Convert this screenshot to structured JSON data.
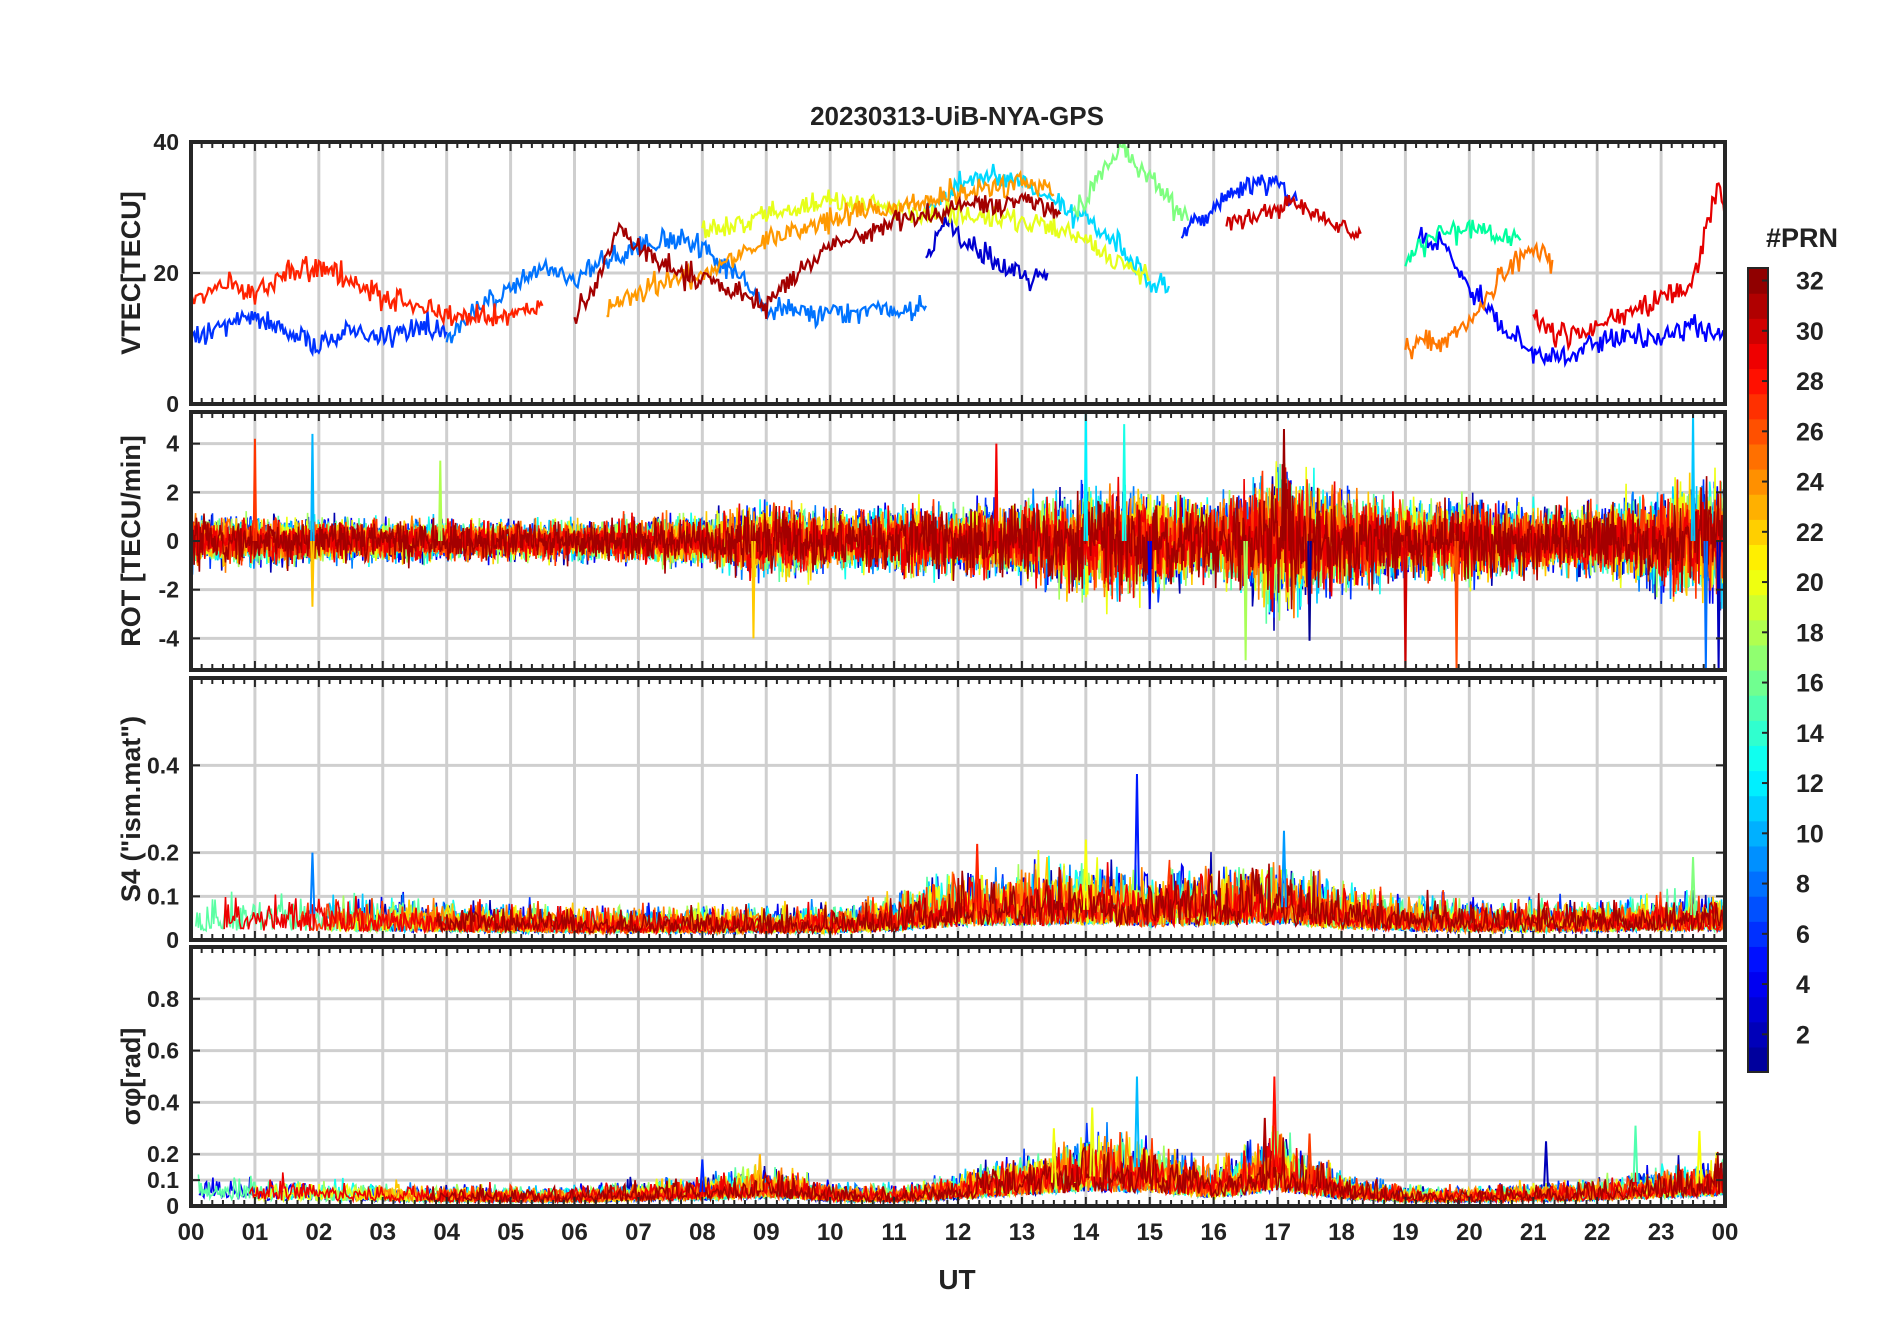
{
  "title": "20230313-UiB-NYA-GPS",
  "xlabel": "UT",
  "x_tick_labels": [
    "00",
    "01",
    "02",
    "03",
    "04",
    "05",
    "06",
    "07",
    "08",
    "09",
    "10",
    "11",
    "12",
    "13",
    "14",
    "15",
    "16",
    "17",
    "18",
    "19",
    "20",
    "21",
    "22",
    "23",
    "00"
  ],
  "colorbar": {
    "title": "#PRN",
    "tick_labels": [
      "2",
      "4",
      "6",
      "8",
      "10",
      "12",
      "14",
      "16",
      "18",
      "20",
      "22",
      "24",
      "26",
      "28",
      "30",
      "32"
    ],
    "range": [
      1,
      32
    ],
    "colormap": "jet",
    "colormap_stops": [
      "#00008f",
      "#0000ff",
      "#0080ff",
      "#00ffff",
      "#80ff80",
      "#ffff00",
      "#ff8000",
      "#ff0000",
      "#800000"
    ]
  },
  "chart_data": [
    {
      "type": "line",
      "panel": "vtec",
      "ylabel": "VTEC[TECU]",
      "xlim": [
        0,
        24
      ],
      "ylim": [
        0,
        40
      ],
      "y_ticks": [
        0,
        20,
        40
      ],
      "y_tick_labels": [
        "0",
        "20",
        "40"
      ],
      "grid": true,
      "series": [
        {
          "prn": 2,
          "color": "#0000d0",
          "points": [
            [
              11.5,
              22
            ],
            [
              11.8,
              28
            ],
            [
              12.2,
              24
            ],
            [
              12.6,
              22
            ],
            [
              13.0,
              19
            ],
            [
              13.4,
              20
            ]
          ]
        },
        {
          "prn": 5,
          "color": "#0033ff",
          "points": [
            [
              0,
              10
            ],
            [
              0.5,
              12
            ],
            [
              1,
              14
            ],
            [
              1.5,
              11
            ],
            [
              2,
              9
            ],
            [
              2.5,
              11
            ],
            [
              3,
              10
            ],
            [
              3.5,
              12
            ],
            [
              4,
              11
            ]
          ]
        },
        {
          "prn": 9,
          "color": "#0073ff",
          "points": [
            [
              4,
              10
            ],
            [
              4.5,
              14
            ],
            [
              5,
              18
            ],
            [
              5.5,
              21
            ],
            [
              6,
              19
            ],
            [
              6.5,
              22
            ],
            [
              7,
              24
            ],
            [
              7.5,
              25
            ],
            [
              8,
              24
            ],
            [
              8.5,
              20
            ],
            [
              9,
              15
            ],
            [
              9.5,
              14
            ],
            [
              10,
              14
            ],
            [
              11,
              14
            ],
            [
              11.5,
              15
            ]
          ]
        },
        {
          "prn": 4,
          "color": "#0022ff",
          "points": [
            [
              15.5,
              26
            ],
            [
              16,
              30
            ],
            [
              16.5,
              33
            ],
            [
              17,
              34
            ],
            [
              17.3,
              31
            ]
          ]
        },
        {
          "prn": 12,
          "color": "#00d8ff",
          "points": [
            [
              11.5,
              30
            ],
            [
              12,
              33
            ],
            [
              12.5,
              35
            ],
            [
              13,
              34
            ],
            [
              13.5,
              31
            ],
            [
              14,
              28
            ],
            [
              14.5,
              24
            ],
            [
              15,
              19
            ],
            [
              15.3,
              18
            ]
          ]
        },
        {
          "prn": 16,
          "color": "#7fff80",
          "points": [
            [
              13.8,
              28
            ],
            [
              14.2,
              35
            ],
            [
              14.5,
              39
            ],
            [
              14.8,
              37
            ],
            [
              15.2,
              32
            ],
            [
              15.6,
              28
            ]
          ]
        },
        {
          "prn": 19,
          "color": "#e6ff1a",
          "points": [
            [
              8,
              26
            ],
            [
              9,
              29
            ],
            [
              10,
              31
            ],
            [
              11,
              30
            ],
            [
              12,
              29
            ],
            [
              13,
              28
            ],
            [
              13.8,
              26
            ],
            [
              14.5,
              22
            ],
            [
              15,
              19
            ]
          ]
        },
        {
          "prn": 23,
          "color": "#ff9900",
          "points": [
            [
              6.5,
              15
            ],
            [
              7,
              17
            ],
            [
              7.5,
              19
            ],
            [
              8,
              20
            ],
            [
              8.5,
              22
            ],
            [
              9,
              25
            ],
            [
              10,
              28
            ],
            [
              11,
              30
            ],
            [
              12,
              32
            ],
            [
              13,
              34
            ],
            [
              13.5,
              32
            ]
          ]
        },
        {
          "prn": 27,
          "color": "#ff2200",
          "points": [
            [
              0,
              16
            ],
            [
              0.5,
              18
            ],
            [
              1,
              17
            ],
            [
              1.5,
              20
            ],
            [
              2,
              21
            ],
            [
              2.5,
              19
            ],
            [
              3,
              17
            ],
            [
              3.5,
              15
            ],
            [
              4,
              14
            ],
            [
              4.5,
              13
            ],
            [
              5,
              14
            ],
            [
              5.5,
              15
            ]
          ]
        },
        {
          "prn": 30,
          "color": "#cc0000",
          "points": [
            [
              16.2,
              27
            ],
            [
              16.8,
              29
            ],
            [
              17.2,
              31
            ],
            [
              17.6,
              29
            ],
            [
              18,
              27
            ],
            [
              18.3,
              26
            ]
          ]
        },
        {
          "prn": 31,
          "color": "#a30000",
          "points": [
            [
              6,
              13
            ],
            [
              6.4,
              20
            ],
            [
              6.7,
              27
            ],
            [
              7,
              24
            ],
            [
              7.5,
              21
            ],
            [
              8,
              19
            ],
            [
              8.5,
              17
            ],
            [
              9,
              15
            ],
            [
              9.5,
              20
            ],
            [
              10,
              24
            ],
            [
              11,
              28
            ],
            [
              12,
              30
            ],
            [
              13,
              31
            ],
            [
              13.6,
              29
            ]
          ]
        },
        {
          "prn": 3,
          "color": "#0000ff",
          "points": [
            [
              19.2,
              26
            ],
            [
              19.6,
              24
            ],
            [
              20,
              18
            ],
            [
              20.5,
              12
            ],
            [
              21,
              8
            ],
            [
              21.5,
              7
            ],
            [
              22,
              9
            ],
            [
              22.5,
              11
            ],
            [
              23,
              10
            ],
            [
              23.5,
              12
            ],
            [
              24,
              10
            ]
          ]
        },
        {
          "prn": 14,
          "color": "#00ff9e",
          "points": [
            [
              19,
              22
            ],
            [
              19.5,
              26
            ],
            [
              20,
              27
            ],
            [
              20.5,
              26
            ],
            [
              20.8,
              25
            ]
          ]
        },
        {
          "prn": 24,
          "color": "#ff7700",
          "points": [
            [
              19,
              9
            ],
            [
              19.5,
              10
            ],
            [
              20,
              12
            ],
            [
              20.5,
              20
            ],
            [
              21,
              24
            ],
            [
              21.3,
              22
            ]
          ]
        },
        {
          "prn": 29,
          "color": "#e60000",
          "points": [
            [
              21,
              13
            ],
            [
              21.5,
              10
            ],
            [
              22,
              12
            ],
            [
              22.5,
              14
            ],
            [
              23,
              16
            ],
            [
              23.5,
              19
            ],
            [
              23.9,
              34
            ],
            [
              24,
              28
            ]
          ]
        }
      ]
    },
    {
      "type": "line",
      "panel": "rot",
      "ylabel": "ROT [TECU/min]",
      "xlim": [
        0,
        24
      ],
      "ylim": [
        -5.3,
        5.3
      ],
      "y_ticks": [
        -4,
        -2,
        0,
        2,
        4
      ],
      "y_tick_labels": [
        "-4",
        "-2",
        "0",
        "2",
        "4"
      ],
      "grid": true,
      "envelope": {
        "description": "ROT fluctuation amplitude vs UT",
        "ut": [
          0,
          2,
          4,
          6,
          8,
          9,
          10,
          11,
          12,
          13,
          14,
          15,
          16,
          17,
          18,
          19,
          20,
          21,
          22,
          23,
          24
        ],
        "amplitude": [
          1.0,
          0.9,
          0.8,
          0.8,
          1.0,
          1.5,
          1.2,
          1.3,
          1.4,
          1.5,
          2.2,
          2.0,
          1.5,
          2.8,
          2.0,
          1.5,
          1.6,
          1.3,
          1.5,
          2.0,
          2.4
        ]
      },
      "spikes": [
        [
          1.0,
          4.2
        ],
        [
          1.9,
          4.4
        ],
        [
          1.9,
          -2.7
        ],
        [
          3.9,
          3.3
        ],
        [
          8.8,
          -4.0
        ],
        [
          12.6,
          4.0
        ],
        [
          14.0,
          5.3
        ],
        [
          14.6,
          4.8
        ],
        [
          15.0,
          -2.8
        ],
        [
          16.5,
          -4.9
        ],
        [
          17.1,
          4.6
        ],
        [
          17.5,
          -4.1
        ],
        [
          19.0,
          -5.3
        ],
        [
          19.8,
          -5.3
        ],
        [
          23.5,
          5.3
        ],
        [
          23.7,
          -5.3
        ],
        [
          23.9,
          -5.3
        ]
      ]
    },
    {
      "type": "line",
      "panel": "s4",
      "ylabel": "S4 (\"ism.mat\")",
      "xlim": [
        0,
        24
      ],
      "ylim": [
        0,
        0.6
      ],
      "y_ticks": [
        0,
        0.1,
        0.2,
        0.4
      ],
      "y_tick_labels": [
        "0",
        "0.1",
        "0.2",
        "0.4"
      ],
      "grid": true,
      "envelope": {
        "description": "S4 typical upper level vs UT",
        "ut": [
          0,
          2,
          4,
          6,
          8,
          10,
          11,
          12,
          13,
          14,
          15,
          16,
          17,
          18,
          19,
          20,
          21,
          22,
          23,
          24
        ],
        "level": [
          0.08,
          0.08,
          0.07,
          0.06,
          0.06,
          0.06,
          0.08,
          0.12,
          0.13,
          0.14,
          0.12,
          0.13,
          0.14,
          0.1,
          0.08,
          0.07,
          0.07,
          0.07,
          0.08,
          0.08
        ]
      },
      "spikes": [
        [
          1.9,
          0.2
        ],
        [
          12.3,
          0.22
        ],
        [
          14.0,
          0.23
        ],
        [
          14.8,
          0.38
        ],
        [
          17.1,
          0.25
        ],
        [
          23.5,
          0.19
        ]
      ]
    },
    {
      "type": "line",
      "panel": "sigma_phi",
      "ylabel": "σφ[rad]",
      "xlim": [
        0,
        24
      ],
      "ylim": [
        0,
        1.0
      ],
      "y_ticks": [
        0,
        0.1,
        0.2,
        0.4,
        0.6,
        0.8
      ],
      "y_tick_labels": [
        "0",
        "0.1",
        "0.2",
        "0.4",
        "0.6",
        "0.8"
      ],
      "grid": true,
      "envelope": {
        "description": "sigma-phi typical upper level vs UT",
        "ut": [
          0,
          2,
          4,
          6,
          8,
          9,
          10,
          11,
          12,
          13,
          14,
          15,
          16,
          17,
          18,
          19,
          20,
          21,
          22,
          23,
          24
        ],
        "level": [
          0.1,
          0.08,
          0.06,
          0.06,
          0.09,
          0.12,
          0.07,
          0.06,
          0.1,
          0.16,
          0.22,
          0.2,
          0.12,
          0.22,
          0.1,
          0.06,
          0.06,
          0.07,
          0.08,
          0.12,
          0.15
        ]
      },
      "spikes": [
        [
          8.0,
          0.18
        ],
        [
          8.9,
          0.2
        ],
        [
          13.5,
          0.3
        ],
        [
          14.1,
          0.38
        ],
        [
          14.8,
          0.5
        ],
        [
          16.8,
          0.34
        ],
        [
          16.95,
          0.5
        ],
        [
          17.5,
          0.28
        ],
        [
          21.2,
          0.25
        ],
        [
          22.6,
          0.31
        ],
        [
          23.6,
          0.29
        ]
      ]
    }
  ]
}
